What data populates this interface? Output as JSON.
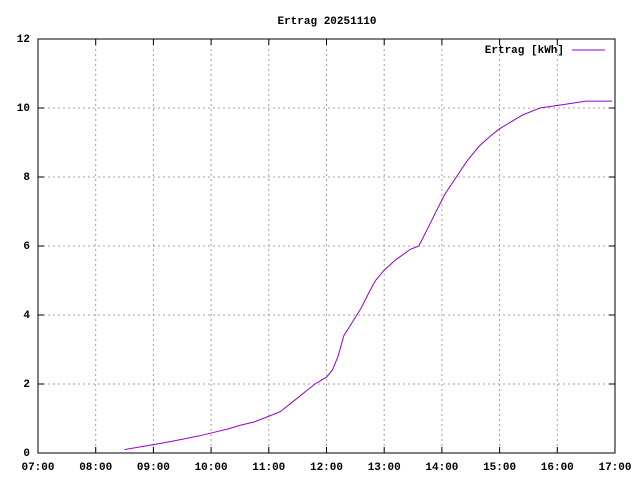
{
  "chart_data": {
    "type": "line",
    "title": "Ertrag 20251110",
    "x": [
      8.5,
      8.85,
      9.2,
      9.5,
      9.8,
      10.05,
      10.3,
      10.5,
      10.75,
      10.9,
      11.05,
      11.2,
      11.35,
      11.5,
      11.65,
      11.8,
      12.0,
      12.1,
      12.2,
      12.3,
      12.45,
      12.6,
      12.75,
      12.85,
      13.0,
      13.2,
      13.45,
      13.6,
      13.75,
      13.9,
      14.05,
      14.25,
      14.45,
      14.65,
      14.85,
      15.0,
      15.2,
      15.4,
      15.7,
      16.1,
      16.5,
      16.95
    ],
    "series": [
      {
        "name": "Ertrag [kWh]",
        "color": "#9400d3",
        "values": [
          0.1,
          0.2,
          0.3,
          0.4,
          0.5,
          0.6,
          0.7,
          0.8,
          0.9,
          1.0,
          1.1,
          1.2,
          1.4,
          1.6,
          1.8,
          2.0,
          2.2,
          2.4,
          2.8,
          3.4,
          3.8,
          4.2,
          4.7,
          5.0,
          5.3,
          5.6,
          5.9,
          6.0,
          6.5,
          7.0,
          7.5,
          8.0,
          8.5,
          8.9,
          9.2,
          9.4,
          9.6,
          9.8,
          10.0,
          10.1,
          10.2,
          10.2
        ]
      }
    ],
    "xlim": [
      7,
      17
    ],
    "xticks": [
      {
        "value": 7,
        "label": "07:00"
      },
      {
        "value": 8,
        "label": "08:00"
      },
      {
        "value": 9,
        "label": "09:00"
      },
      {
        "value": 10,
        "label": "10:00"
      },
      {
        "value": 11,
        "label": "11:00"
      },
      {
        "value": 12,
        "label": "12:00"
      },
      {
        "value": 13,
        "label": "13:00"
      },
      {
        "value": 14,
        "label": "14:00"
      },
      {
        "value": 15,
        "label": "15:00"
      },
      {
        "value": 16,
        "label": "16:00"
      },
      {
        "value": 17,
        "label": "17:00"
      }
    ],
    "ylim": [
      0,
      12
    ],
    "yticks": [
      0,
      2,
      4,
      6,
      8,
      10,
      12
    ],
    "grid": true,
    "legend": "top-right"
  }
}
